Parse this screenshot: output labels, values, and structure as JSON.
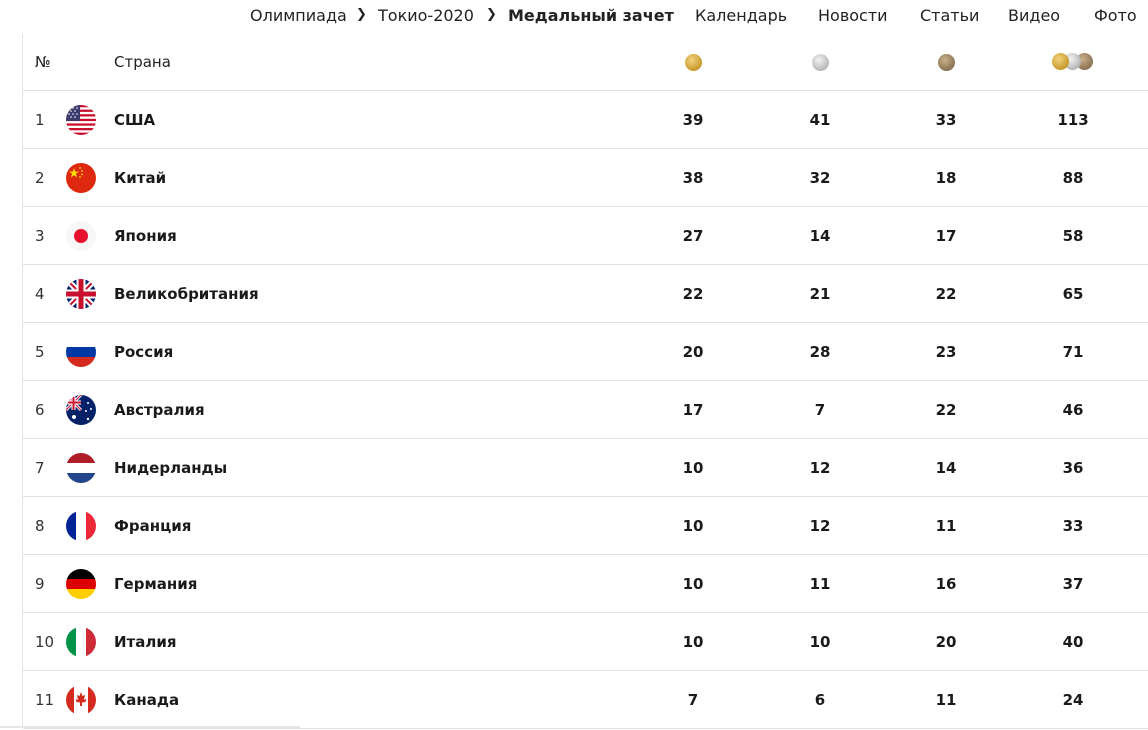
{
  "breadcrumb": {
    "items": [
      "Олимпиада",
      "Токио-2020",
      "Медальный зачет"
    ]
  },
  "nav": {
    "links": [
      "Календарь",
      "Новости",
      "Статьи",
      "Видео",
      "Фото"
    ]
  },
  "table": {
    "headers": {
      "rank": "№",
      "country": "Страна"
    },
    "medal_icons": [
      "gold-medal-icon",
      "silver-medal-icon",
      "bronze-medal-icon",
      "total-medals-icon"
    ],
    "rows": [
      {
        "rank": "1",
        "country": "США",
        "flag": "usa-flag-icon",
        "gold": "39",
        "silver": "41",
        "bronze": "33",
        "total": "113"
      },
      {
        "rank": "2",
        "country": "Китай",
        "flag": "china-flag-icon",
        "gold": "38",
        "silver": "32",
        "bronze": "18",
        "total": "88"
      },
      {
        "rank": "3",
        "country": "Япония",
        "flag": "japan-flag-icon",
        "gold": "27",
        "silver": "14",
        "bronze": "17",
        "total": "58"
      },
      {
        "rank": "4",
        "country": "Великобритания",
        "flag": "uk-flag-icon",
        "gold": "22",
        "silver": "21",
        "bronze": "22",
        "total": "65"
      },
      {
        "rank": "5",
        "country": "Россия",
        "flag": "russia-flag-icon",
        "gold": "20",
        "silver": "28",
        "bronze": "23",
        "total": "71"
      },
      {
        "rank": "6",
        "country": "Австралия",
        "flag": "australia-flag-icon",
        "gold": "17",
        "silver": "7",
        "bronze": "22",
        "total": "46"
      },
      {
        "rank": "7",
        "country": "Нидерланды",
        "flag": "netherlands-flag-icon",
        "gold": "10",
        "silver": "12",
        "bronze": "14",
        "total": "36"
      },
      {
        "rank": "8",
        "country": "Франция",
        "flag": "france-flag-icon",
        "gold": "10",
        "silver": "12",
        "bronze": "11",
        "total": "33"
      },
      {
        "rank": "9",
        "country": "Германия",
        "flag": "germany-flag-icon",
        "gold": "10",
        "silver": "11",
        "bronze": "16",
        "total": "37"
      },
      {
        "rank": "10",
        "country": "Италия",
        "flag": "italy-flag-icon",
        "gold": "10",
        "silver": "10",
        "bronze": "20",
        "total": "40"
      },
      {
        "rank": "11",
        "country": "Канада",
        "flag": "canada-flag-icon",
        "gold": "7",
        "silver": "6",
        "bronze": "11",
        "total": "24"
      }
    ]
  }
}
